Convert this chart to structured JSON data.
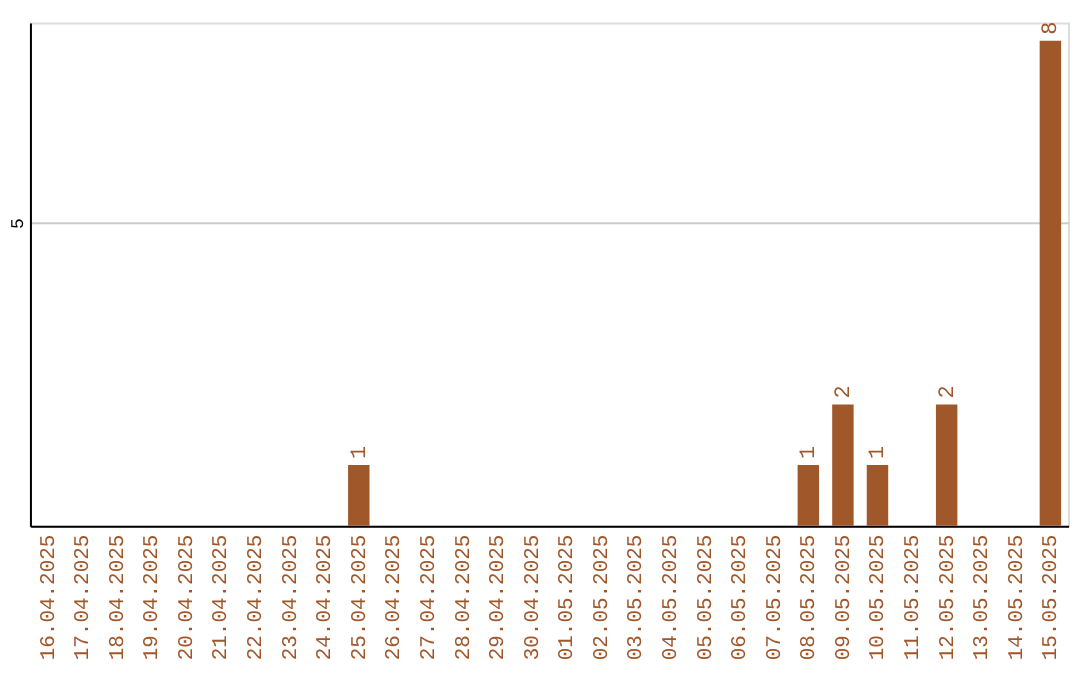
{
  "chart_data": {
    "type": "bar",
    "categories": [
      "16.04.2025",
      "17.04.2025",
      "18.04.2025",
      "19.04.2025",
      "20.04.2025",
      "21.04.2025",
      "22.04.2025",
      "23.04.2025",
      "24.04.2025",
      "25.04.2025",
      "26.04.2025",
      "27.04.2025",
      "28.04.2025",
      "29.04.2025",
      "30.04.2025",
      "01.05.2025",
      "02.05.2025",
      "03.05.2025",
      "04.05.2025",
      "05.05.2025",
      "06.05.2025",
      "07.05.2025",
      "08.05.2025",
      "09.05.2025",
      "10.05.2025",
      "11.05.2025",
      "12.05.2025",
      "13.05.2025",
      "14.05.2025",
      "15.05.2025"
    ],
    "values": [
      0,
      0,
      0,
      0,
      0,
      0,
      0,
      0,
      0,
      1,
      0,
      0,
      0,
      0,
      0,
      0,
      0,
      0,
      0,
      0,
      0,
      0,
      1,
      2,
      1,
      0,
      2,
      0,
      0,
      8
    ],
    "value_labels": [
      null,
      null,
      null,
      null,
      null,
      null,
      null,
      null,
      null,
      "1",
      null,
      null,
      null,
      null,
      null,
      null,
      null,
      null,
      null,
      null,
      null,
      null,
      "1",
      "2",
      "1",
      null,
      "2",
      null,
      null,
      "8"
    ],
    "color": "#a0572a",
    "ylim": [
      0,
      8.3
    ],
    "yticks": [
      5
    ],
    "grid": "y"
  }
}
